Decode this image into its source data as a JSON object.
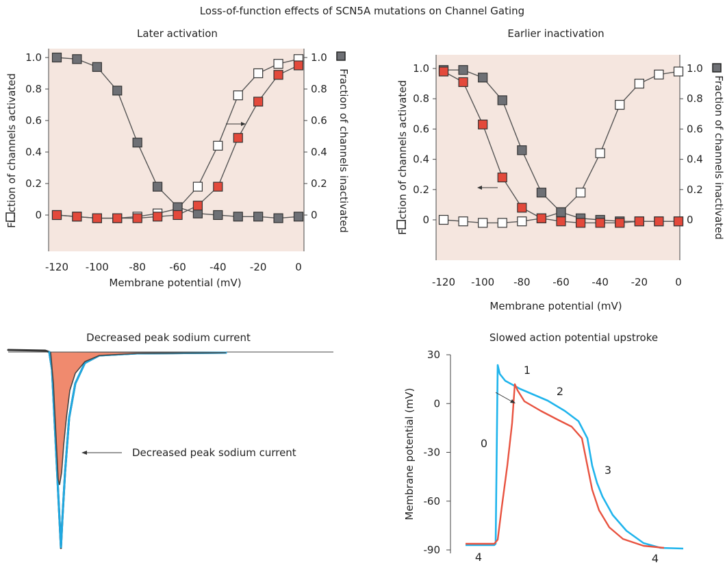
{
  "figure_title": "Loss-of-function effects of SCN5A mutations on Channel Gating",
  "colors": {
    "panel_bg": "#f5e6df",
    "open_marker": "#ffffff",
    "wildtype_inactivation_marker": "#6e7075",
    "mutant_marker": "#e3493b",
    "curve_line": "#555555",
    "current_fill": "#f08a6e",
    "current_trace": "#1fa8e0",
    "ap_wildtype": "#1fb4ec",
    "ap_mutant": "#e8523f"
  },
  "chart_data": [
    {
      "type": "scatter",
      "title": "Later activation",
      "xlabel": "Membrane potential (mV)",
      "ylabel_left": "Fraction of channels activated",
      "ylabel_right": "Fraction of channels inactivated",
      "xlim": [
        -120,
        0
      ],
      "ylim": [
        0,
        1
      ],
      "xticks": [
        "-120",
        "-100",
        "-80",
        "-60",
        "-40",
        "-20",
        "0"
      ],
      "yticks": [
        "0",
        "0.2",
        "0.4",
        "0.6",
        "0.8",
        "1.0"
      ],
      "yticks_right": [
        "0",
        "0.2",
        "0.4",
        "0.6",
        "0.8",
        "1.0"
      ],
      "series": [
        {
          "marker": "open-square",
          "x": [
            -120,
            -110,
            -100,
            -90,
            -80,
            -70,
            -60,
            -50,
            -40,
            -30,
            -20,
            -10,
            0
          ],
          "y": [
            0,
            -0.01,
            -0.02,
            -0.02,
            -0.01,
            0.01,
            0.04,
            0.18,
            0.44,
            0.76,
            0.9,
            0.96,
            0.99
          ]
        },
        {
          "marker": "gray-square",
          "x": [
            -120,
            -110,
            -100,
            -90,
            -80,
            -70,
            -60,
            -50,
            -40,
            -30,
            -20,
            -10,
            0
          ],
          "y": [
            1.0,
            0.99,
            0.94,
            0.79,
            0.46,
            0.18,
            0.05,
            0.01,
            0.0,
            -0.01,
            -0.01,
            -0.02,
            -0.01
          ]
        },
        {
          "marker": "red-square",
          "x": [
            -120,
            -110,
            -100,
            -90,
            -80,
            -70,
            -60,
            -50,
            -40,
            -30,
            -20,
            -10,
            0
          ],
          "y": [
            0,
            -0.01,
            -0.02,
            -0.02,
            -0.02,
            -0.01,
            0.0,
            0.06,
            0.18,
            0.49,
            0.72,
            0.89,
            0.95
          ]
        }
      ]
    },
    {
      "type": "scatter",
      "title": "Earlier inactivation",
      "xlabel": "Membrane potential (mV)",
      "ylabel_left": "Fraction of channels activated",
      "ylabel_right": "Fraction of channels inactivated",
      "xlim": [
        -120,
        0
      ],
      "ylim": [
        0,
        1
      ],
      "xticks": [
        "-120",
        "-100",
        "-80",
        "-60",
        "-40",
        "-20",
        "0"
      ],
      "yticks": [
        "0",
        "0.2",
        "0.4",
        "0.6",
        "0.8",
        "1.0"
      ],
      "yticks_right": [
        "0",
        "0.2",
        "0.4",
        "0.6",
        "0.8",
        "1.0"
      ],
      "series": [
        {
          "marker": "open-square",
          "x": [
            -120,
            -110,
            -100,
            -90,
            -80,
            -70,
            -60,
            -50,
            -40,
            -30,
            -20,
            -10,
            0
          ],
          "y": [
            0,
            -0.01,
            -0.02,
            -0.02,
            -0.01,
            0.01,
            0.05,
            0.18,
            0.44,
            0.76,
            0.9,
            0.96,
            0.98
          ]
        },
        {
          "marker": "gray-square",
          "x": [
            -120,
            -110,
            -100,
            -90,
            -80,
            -70,
            -60,
            -50,
            -40,
            -30,
            -20,
            -10,
            0
          ],
          "y": [
            0.99,
            0.99,
            0.94,
            0.79,
            0.46,
            0.18,
            0.05,
            0.01,
            0.0,
            -0.01,
            -0.01,
            -0.01,
            -0.01
          ]
        },
        {
          "marker": "red-square",
          "x": [
            -120,
            -110,
            -100,
            -90,
            -80,
            -70,
            -60,
            -50,
            -40,
            -30,
            -20,
            -10,
            0
          ],
          "y": [
            0.98,
            0.91,
            0.63,
            0.28,
            0.08,
            0.01,
            -0.01,
            -0.02,
            -0.02,
            -0.02,
            -0.01,
            -0.01,
            -0.01
          ]
        }
      ]
    },
    {
      "type": "line",
      "title": "Decreased peak sodium current",
      "annotation": "Decreased peak sodium current"
    },
    {
      "type": "line",
      "title": "Slowed action potential upstroke",
      "ylabel": "Membrane potential (mV)",
      "ylim": [
        -90,
        30
      ],
      "yticks": [
        "30",
        "0",
        "-30",
        "-60",
        "-90"
      ],
      "phase_labels": [
        "0",
        "1",
        "2",
        "3",
        "4",
        "4"
      ]
    }
  ]
}
